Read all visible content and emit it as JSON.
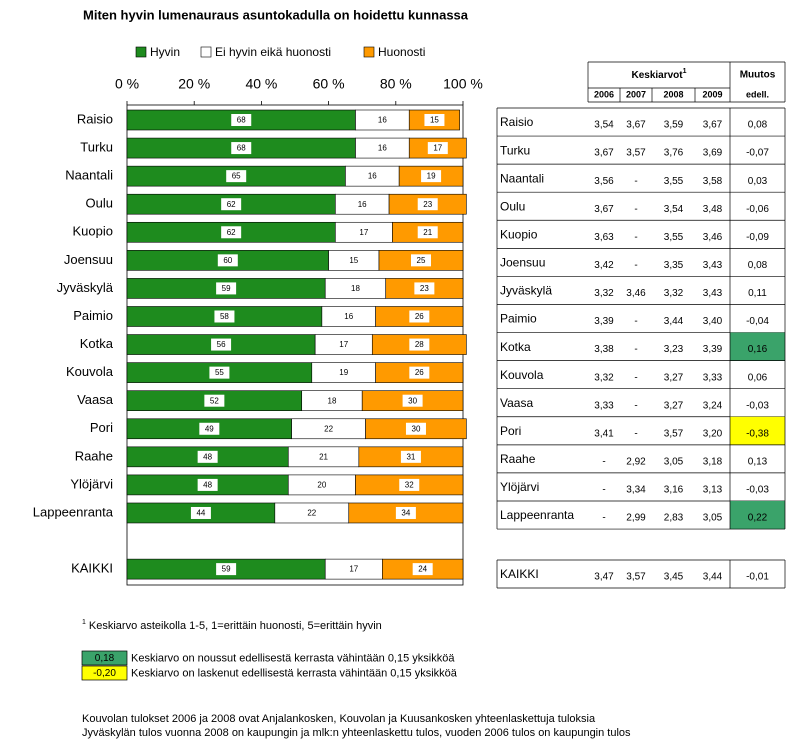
{
  "chart_data": {
    "type": "stacked-barh",
    "title": "Miten hyvin lumenauraus asuntokadulla on hoidettu kunnassa",
    "categories": [
      "Raisio",
      "Turku",
      "Naantali",
      "Oulu",
      "Kuopio",
      "Joensuu",
      "Jyväskylä",
      "Paimio",
      "Kotka",
      "Kouvola",
      "Vaasa",
      "Pori",
      "Raahe",
      "Ylöjärvi",
      "Lappeenranta",
      null,
      "KAIKKI"
    ],
    "series": [
      {
        "name": "Hyvin",
        "color": "#1e8b1e",
        "values": [
          68,
          68,
          65,
          62,
          62,
          60,
          59,
          58,
          56,
          55,
          52,
          49,
          48,
          48,
          44,
          null,
          59
        ]
      },
      {
        "name": "Ei hyvin eikä huonosti",
        "color": "#ffffff",
        "values": [
          16,
          16,
          16,
          16,
          17,
          15,
          18,
          16,
          17,
          19,
          18,
          22,
          21,
          20,
          22,
          null,
          17
        ]
      },
      {
        "name": "Huonosti",
        "color": "#ff9a00",
        "values": [
          15,
          17,
          19,
          23,
          21,
          25,
          23,
          26,
          28,
          26,
          30,
          30,
          31,
          32,
          34,
          null,
          24
        ]
      }
    ],
    "xlim": [
      0,
      100
    ],
    "xticks": [
      {
        "value": 0,
        "label": "0 %"
      },
      {
        "value": 20,
        "label": "20 %"
      },
      {
        "value": 40,
        "label": "40 %"
      },
      {
        "value": 60,
        "label": "60 %"
      },
      {
        "value": 80,
        "label": "80 %"
      },
      {
        "value": 100,
        "label": "100 %"
      }
    ],
    "legend": "top"
  },
  "table": {
    "group_header": "Keskiarvot",
    "group_header_mark": "1",
    "change_header": [
      "Muutos",
      "edell."
    ],
    "years": [
      "2006",
      "2007",
      "2008",
      "2009"
    ],
    "rows": [
      {
        "cells": [
          "Raisio",
          "3,54",
          "3,67",
          "3,59",
          "3,67",
          "0,08"
        ]
      },
      {
        "cells": [
          "Turku",
          "3,67",
          "3,57",
          "3,76",
          "3,69",
          "-0,07"
        ]
      },
      {
        "cells": [
          "Naantali",
          "3,56",
          "-",
          "3,55",
          "3,58",
          "0,03"
        ]
      },
      {
        "cells": [
          "Oulu",
          "3,67",
          "-",
          "3,54",
          "3,48",
          "-0,06"
        ]
      },
      {
        "cells": [
          "Kuopio",
          "3,63",
          "-",
          "3,55",
          "3,46",
          "-0,09"
        ]
      },
      {
        "cells": [
          "Joensuu",
          "3,42",
          "-",
          "3,35",
          "3,43",
          "0,08"
        ]
      },
      {
        "cells": [
          "Jyväskylä",
          "3,32",
          "3,46",
          "3,32",
          "3,43",
          "0,11"
        ]
      },
      {
        "cells": [
          "Paimio",
          "3,39",
          "-",
          "3,44",
          "3,40",
          "-0,04"
        ]
      },
      {
        "cells": [
          "Kotka",
          "3,38",
          "-",
          "3,23",
          "3,39",
          "0,16"
        ],
        "highlight": "#3aa36a"
      },
      {
        "cells": [
          "Kouvola",
          "3,32",
          "-",
          "3,27",
          "3,33",
          "0,06"
        ]
      },
      {
        "cells": [
          "Vaasa",
          "3,33",
          "-",
          "3,27",
          "3,24",
          "-0,03"
        ]
      },
      {
        "cells": [
          "Pori",
          "3,41",
          "-",
          "3,57",
          "3,20",
          "-0,38"
        ],
        "highlight": "#ffff00"
      },
      {
        "cells": [
          "Raahe",
          "-",
          "2,92",
          "3,05",
          "3,18",
          "0,13"
        ]
      },
      {
        "cells": [
          "Ylöjärvi",
          "-",
          "3,34",
          "3,16",
          "3,13",
          "-0,03"
        ]
      },
      {
        "cells": [
          "Lappeenranta",
          "-",
          "2,99",
          "2,83",
          "3,05",
          "0,22"
        ],
        "highlight": "#3aa36a"
      }
    ],
    "total_row": {
      "cells": [
        "KAIKKI",
        "3,47",
        "3,57",
        "3,45",
        "3,44",
        "-0,01"
      ]
    }
  },
  "notes": {
    "footnote_mark": "1",
    "footnote": "Keskiarvo asteikolla 1-5, 1=erittäin huonosti, 5=erittäin hyvin",
    "key": [
      {
        "sample": "0,18",
        "color": "#3aa36a",
        "text": "Keskiarvo on noussut edellisestä kerrasta vähintään 0,15 yksikköä"
      },
      {
        "sample": "-0,20",
        "color": "#ffff00",
        "text": "Keskiarvo on laskenut edellisestä kerrasta vähintään 0,15 yksikköä"
      }
    ],
    "lines": [
      "Kouvolan tulokset 2006 ja 2008 ovat Anjalankosken, Kouvolan ja Kuusankosken yhteenlaskettuja tuloksia",
      "Jyväskylän tulos vuonna 2008 on kaupungin ja mlk:n yhteenlaskettu  tulos, vuoden 2006 tulos on  kaupungin tulos"
    ]
  }
}
